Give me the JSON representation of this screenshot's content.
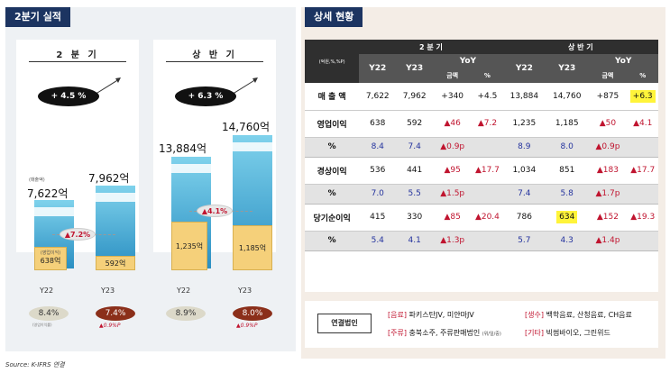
{
  "left": {
    "header": "2분기 실적",
    "q2": {
      "title": "2 분 기",
      "growth": "+ 4.5 %",
      "sales_caption": "(매출액)",
      "op_caption": "(영업이익)",
      "y22_sales": "7,622억",
      "y23_sales": "7,962억",
      "y22_op": "638억",
      "y23_op": "592억",
      "op_change": "▲7.2%",
      "y22": "Y22",
      "y23": "Y23",
      "y22_margin": "8.4%",
      "y22_margin_caption": "(영업이익률)",
      "y23_margin": "7.4%",
      "y23_margin_change": "▲0.9%P"
    },
    "h1": {
      "title": "상 반 기",
      "growth": "+ 6.3 %",
      "y22_sales": "13,884억",
      "y23_sales": "14,760억",
      "y22_op": "1,235억",
      "y23_op": "1,185억",
      "op_change": "▲4.1%",
      "y22": "Y22",
      "y23": "Y23",
      "y22_margin": "8.9%",
      "y23_margin": "8.0%",
      "y23_margin_change": "▲0.9%P"
    },
    "source": "Source: K-IFRS 연결"
  },
  "right": {
    "header": "상세 현황",
    "unit": "(억원,%,%P)",
    "group_q2": "2 분 기",
    "group_h1": "상 반 기",
    "col_y22": "Y22",
    "col_y23": "Y23",
    "col_yoy": "YoY",
    "col_amount": "금액",
    "col_pct": "%",
    "rows": {
      "sales": {
        "label": "매 출 액",
        "q2": [
          "7,622",
          "7,962",
          "+340",
          "+4.5"
        ],
        "h1": [
          "13,884",
          "14,760",
          "+875",
          "+6.3"
        ]
      },
      "op": {
        "label": "영업이익",
        "q2": [
          "638",
          "592",
          "▲46",
          "▲7.2"
        ],
        "h1": [
          "1,235",
          "1,185",
          "▲50",
          "▲4.1"
        ]
      },
      "op_pct": {
        "label": "%",
        "q2": [
          "8.4",
          "7.4",
          "▲0.9p"
        ],
        "h1": [
          "8.9",
          "8.0",
          "▲0.9p"
        ]
      },
      "ord": {
        "label": "경상이익",
        "q2": [
          "536",
          "441",
          "▲95",
          "▲17.7"
        ],
        "h1": [
          "1,034",
          "851",
          "▲183",
          "▲17.7"
        ]
      },
      "ord_pct": {
        "label": "%",
        "q2": [
          "7.0",
          "5.5",
          "▲1.5p"
        ],
        "h1": [
          "7.4",
          "5.8",
          "▲1.7p"
        ]
      },
      "net": {
        "label": "당기순이익",
        "q2": [
          "415",
          "330",
          "▲85",
          "▲20.4"
        ],
        "h1": [
          "786",
          "634",
          "▲152",
          "▲19.3"
        ]
      },
      "net_pct": {
        "label": "%",
        "q2": [
          "5.4",
          "4.1",
          "▲1.3p"
        ],
        "h1": [
          "5.7",
          "4.3",
          "▲1.4p"
        ]
      }
    },
    "legend": {
      "badge": "연결법인",
      "item1_tag": "[음료]",
      "item1_text": "파키스탄JV, 미얀마JV",
      "item2_tag": "[생수]",
      "item2_text": "백학음료, 산청음료, CH음료",
      "item3_tag": "[주류]",
      "item3_text": "충북소주, 주류판매법인",
      "item3_small": "(위/일/중)",
      "item4_tag": "[기타]",
      "item4_text": "빅썸바이오, 그린위드"
    }
  },
  "colors": {
    "navy": "#1c3461",
    "bar_blue": "#2a8fc2",
    "op_gold": "#f5d07a",
    "neg_red": "#c0142f",
    "highlight": "#fff43a"
  }
}
